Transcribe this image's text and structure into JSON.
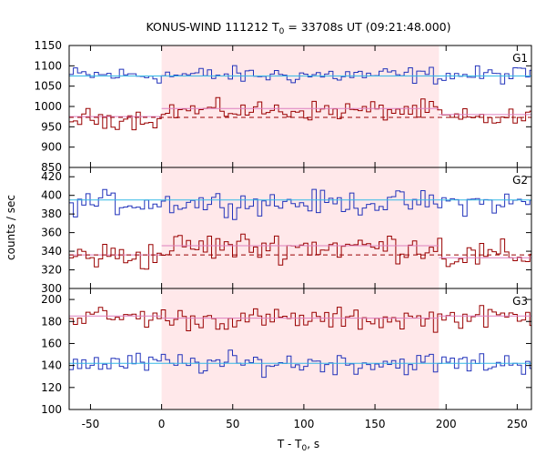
{
  "chart_data": {
    "type": "line",
    "title": {
      "prefix": "KONUS-WIND 111212 T",
      "sub": "0",
      "suffix": " = 33708s UT (09:21:48.000)"
    },
    "xlabel": {
      "prefix": "T - T",
      "sub": "0",
      "suffix": ", s"
    },
    "ylabel": "counts / sec",
    "xlim": [
      -65,
      260
    ],
    "xticks": [
      "-50",
      "0",
      "50",
      "100",
      "150",
      "200",
      "250"
    ],
    "xtick_values": [
      -50,
      0,
      50,
      100,
      150,
      200,
      250
    ],
    "highlight_interval": [
      0,
      195
    ],
    "highlight_color": "#ffe8ea",
    "bin_width": 2.944,
    "colors": {
      "red_series": "#990000",
      "blue_series": "#2233bb",
      "blue_background": "#33b9e6",
      "red_background": "#dd7fbf",
      "red_dashed": "#990000"
    },
    "panels": [
      {
        "label": "G1",
        "ylim": [
          850,
          1150
        ],
        "yticks": [
          "850",
          "900",
          "950",
          "1000",
          "1050",
          "1100",
          "1150"
        ],
        "ytick_values": [
          850,
          900,
          950,
          1000,
          1050,
          1100,
          1150
        ],
        "blue": {
          "base": 1077,
          "amp": 15,
          "background": 1075
        },
        "red": {
          "base": 970,
          "amp": 17,
          "background_pre": 975,
          "background_in": 995,
          "background_post": 980,
          "dashed_level": 973
        }
      },
      {
        "label": "G2",
        "ylim": [
          300,
          430
        ],
        "yticks": [
          "300",
          "320",
          "340",
          "360",
          "380",
          "400",
          "420"
        ],
        "ytick_values": [
          300,
          320,
          340,
          360,
          380,
          400,
          420
        ],
        "blue": {
          "base": 392,
          "amp": 9,
          "background": 395
        },
        "red": {
          "base": 335,
          "amp": 11,
          "background_pre": 336,
          "background_in": 346,
          "background_post": 333,
          "dashed_level": 336
        }
      },
      {
        "label": "G3",
        "ylim": [
          100,
          210
        ],
        "yticks": [
          "100",
          "120",
          "140",
          "160",
          "180",
          "200"
        ],
        "ytick_values": [
          100,
          120,
          140,
          160,
          180,
          200
        ],
        "blue": {
          "base": 142,
          "amp": 7,
          "background": 142
        },
        "red": {
          "base": 184,
          "amp": 7,
          "background_pre": 185,
          "background_in": 183,
          "background_post": 185,
          "dashed_level": null
        }
      }
    ]
  }
}
